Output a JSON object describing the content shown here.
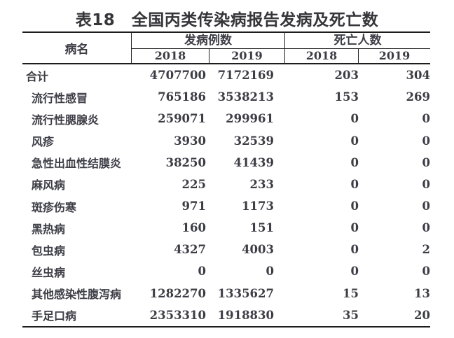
{
  "title": {
    "text": "表18　全国丙类传染病报告发病及死亡数"
  },
  "table": {
    "col_name_header": "病名",
    "groups": [
      {
        "label": "发病例数",
        "years": [
          "2018",
          "2019"
        ]
      },
      {
        "label": "死亡人数",
        "years": [
          "2018",
          "2019"
        ]
      }
    ],
    "rows": [
      {
        "name": "合计",
        "cases_2018": "4707700",
        "cases_2019": "7172169",
        "deaths_2018": "203",
        "deaths_2019": "304"
      },
      {
        "name": "流行性感冒",
        "cases_2018": "765186",
        "cases_2019": "3538213",
        "deaths_2018": "153",
        "deaths_2019": "269"
      },
      {
        "name": "流行性腮腺炎",
        "cases_2018": "259071",
        "cases_2019": "299961",
        "deaths_2018": "0",
        "deaths_2019": "0"
      },
      {
        "name": "风疹",
        "cases_2018": "3930",
        "cases_2019": "32539",
        "deaths_2018": "0",
        "deaths_2019": "0"
      },
      {
        "name": "急性出血性结膜炎",
        "cases_2018": "38250",
        "cases_2019": "41439",
        "deaths_2018": "0",
        "deaths_2019": "0"
      },
      {
        "name": "麻风病",
        "cases_2018": "225",
        "cases_2019": "233",
        "deaths_2018": "0",
        "deaths_2019": "0"
      },
      {
        "name": "斑疹伤寒",
        "cases_2018": "971",
        "cases_2019": "1173",
        "deaths_2018": "0",
        "deaths_2019": "0"
      },
      {
        "name": "黑热病",
        "cases_2018": "160",
        "cases_2019": "151",
        "deaths_2018": "0",
        "deaths_2019": "0"
      },
      {
        "name": "包虫病",
        "cases_2018": "4327",
        "cases_2019": "4003",
        "deaths_2018": "0",
        "deaths_2019": "2"
      },
      {
        "name": "丝虫病",
        "cases_2018": "0",
        "cases_2019": "0",
        "deaths_2018": "0",
        "deaths_2019": "0"
      },
      {
        "name": "其他感染性腹泻病",
        "cases_2018": "1282270",
        "cases_2019": "1335627",
        "deaths_2018": "15",
        "deaths_2019": "13"
      },
      {
        "name": "手足口病",
        "cases_2018": "2353310",
        "cases_2019": "1918830",
        "deaths_2018": "35",
        "deaths_2019": "20"
      }
    ]
  },
  "colors": {
    "text": "#3d3d46",
    "border": "#1d1d1d",
    "background": "#ffffff"
  }
}
